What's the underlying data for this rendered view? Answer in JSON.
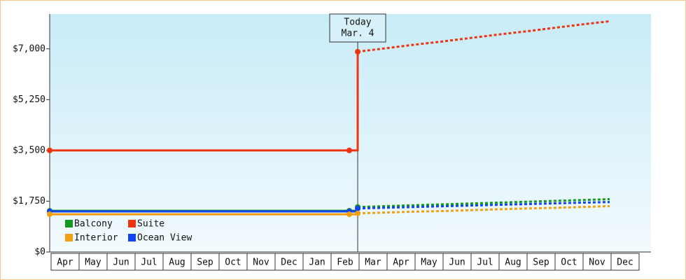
{
  "chart_data": {
    "type": "line",
    "annotation": [
      "Today",
      "Mar. 4"
    ],
    "today_index": 11,
    "categories": [
      "Apr",
      "May",
      "Jun",
      "Jul",
      "Aug",
      "Sep",
      "Oct",
      "Nov",
      "Dec",
      "Jan",
      "Feb",
      "Mar",
      "Apr",
      "May",
      "Jun",
      "Jul",
      "Aug",
      "Sep",
      "Oct",
      "Nov",
      "Dec"
    ],
    "ylim": [
      0,
      8200
    ],
    "yticks": [
      {
        "value": 0,
        "label": "$0"
      },
      {
        "value": 1750,
        "label": "$1,750"
      },
      {
        "value": 3500,
        "label": "$3,500"
      },
      {
        "value": 5250,
        "label": "$5,250"
      },
      {
        "value": 7000,
        "label": "$7,000"
      }
    ],
    "series": [
      {
        "name": "Balcony",
        "color": "#119922",
        "values": [
          1420,
          1420,
          1420,
          1420,
          1420,
          1420,
          1420,
          1420,
          1420,
          1420,
          1420,
          1550,
          null,
          null,
          null,
          null,
          null,
          null,
          null,
          null,
          null
        ],
        "forecast": [
          null,
          null,
          null,
          null,
          null,
          null,
          null,
          null,
          null,
          null,
          null,
          1550,
          1580,
          1610,
          1640,
          1670,
          1700,
          1730,
          1760,
          1790,
          1820
        ]
      },
      {
        "name": "Suite",
        "color": "#ee3311",
        "values": [
          3500,
          3500,
          3500,
          3500,
          3500,
          3500,
          3500,
          3500,
          3500,
          3500,
          3500,
          6900,
          null,
          null,
          null,
          null,
          null,
          null,
          null,
          null,
          null
        ],
        "forecast": [
          null,
          null,
          null,
          null,
          null,
          null,
          null,
          null,
          null,
          null,
          null,
          6900,
          7020,
          7140,
          7250,
          7370,
          7490,
          7600,
          7720,
          7840,
          7950
        ]
      },
      {
        "name": "Interior",
        "color": "#f0a010",
        "values": [
          1300,
          1300,
          1300,
          1300,
          1300,
          1300,
          1300,
          1300,
          1300,
          1300,
          1300,
          1330,
          null,
          null,
          null,
          null,
          null,
          null,
          null,
          null,
          null
        ],
        "forecast": [
          null,
          null,
          null,
          null,
          null,
          null,
          null,
          null,
          null,
          null,
          null,
          1330,
          1360,
          1390,
          1410,
          1440,
          1470,
          1500,
          1520,
          1550,
          1580
        ]
      },
      {
        "name": "Ocean View",
        "color": "#1144ee",
        "values": [
          1400,
          1400,
          1400,
          1400,
          1400,
          1400,
          1400,
          1400,
          1400,
          1400,
          1400,
          1500,
          null,
          null,
          null,
          null,
          null,
          null,
          null,
          null,
          null
        ],
        "forecast": [
          null,
          null,
          null,
          null,
          null,
          null,
          null,
          null,
          null,
          null,
          null,
          1500,
          1525,
          1550,
          1575,
          1600,
          1625,
          1650,
          1675,
          1700,
          1720
        ]
      }
    ]
  }
}
